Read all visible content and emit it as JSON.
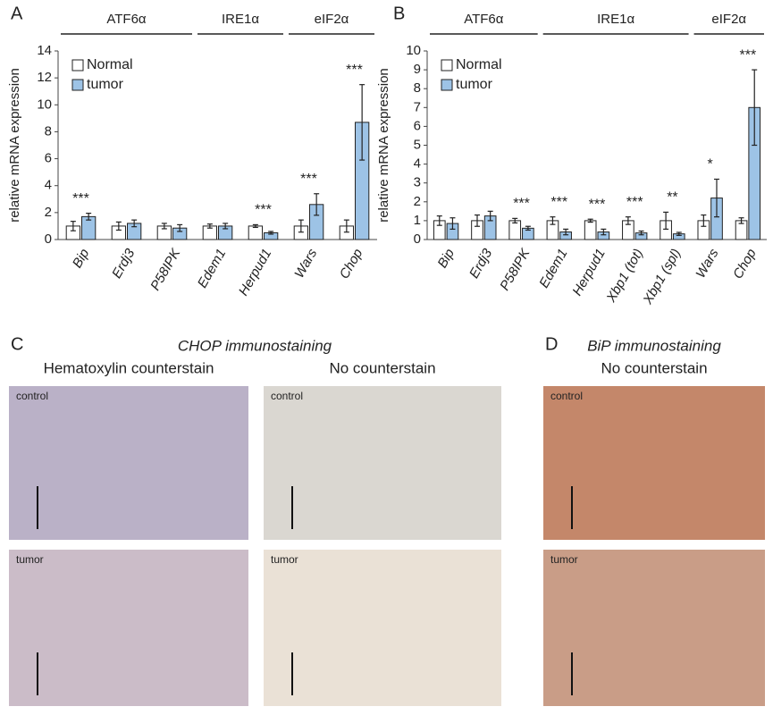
{
  "panel_labels": [
    "A",
    "B",
    "C",
    "D"
  ],
  "chart_data": [
    {
      "type": "bar",
      "y_label": "relative mRNA expression",
      "groups": [
        {
          "label": "ATF6α",
          "categories": [
            "Bip",
            "Erdj3",
            "P58IPK"
          ]
        },
        {
          "label": "IRE1α",
          "categories": [
            "Edem1",
            "Herpud1"
          ]
        },
        {
          "label": "eIF2α",
          "categories": [
            "Wars",
            "Chop"
          ]
        }
      ],
      "series": [
        {
          "name": "Normal",
          "color": "#ffffff",
          "values": [
            1,
            1,
            1,
            1,
            1,
            1,
            1
          ],
          "errors": [
            0.35,
            0.3,
            0.2,
            0.15,
            0.1,
            0.45,
            0.45
          ]
        },
        {
          "name": "tumor",
          "color": "#9dc3e6",
          "values": [
            1.7,
            1.2,
            0.85,
            1.0,
            0.5,
            2.6,
            8.7
          ],
          "errors": [
            0.25,
            0.25,
            0.25,
            0.2,
            0.1,
            0.8,
            2.8
          ]
        }
      ],
      "annotations": [
        "***",
        null,
        null,
        null,
        "***",
        "***",
        "***"
      ],
      "ylim": [
        0,
        14
      ],
      "yticks": [
        0,
        2,
        4,
        6,
        8,
        10,
        12,
        14
      ],
      "legend": "top-left"
    },
    {
      "type": "bar",
      "y_label": "relative mRNA expression",
      "groups": [
        {
          "label": "ATF6α",
          "categories": [
            "Bip",
            "Erdj3",
            "P58IPK"
          ]
        },
        {
          "label": "IRE1α",
          "categories": [
            "Edem1",
            "Herpud1",
            "Xbp1 (tot)",
            "Xbp1 (spl)"
          ]
        },
        {
          "label": "eIF2α",
          "categories": [
            "Wars",
            "Chop"
          ]
        }
      ],
      "series": [
        {
          "name": "Normal",
          "color": "#ffffff",
          "values": [
            1,
            1,
            1,
            1,
            1,
            1,
            1,
            1,
            1
          ],
          "errors": [
            0.25,
            0.3,
            0.12,
            0.2,
            0.08,
            0.2,
            0.45,
            0.3,
            0.15
          ]
        },
        {
          "name": "tumor",
          "color": "#9dc3e6",
          "values": [
            0.85,
            1.25,
            0.6,
            0.4,
            0.4,
            0.35,
            0.3,
            2.2,
            7.0
          ],
          "errors": [
            0.3,
            0.25,
            0.1,
            0.15,
            0.15,
            0.1,
            0.08,
            1.0,
            2.0
          ]
        }
      ],
      "annotations": [
        null,
        null,
        "***",
        "***",
        "***",
        "***",
        "**",
        "*",
        "***"
      ],
      "ylim": [
        0,
        10
      ],
      "yticks": [
        0,
        1,
        2,
        3,
        4,
        5,
        6,
        7,
        8,
        9,
        10
      ],
      "legend": "top-left"
    }
  ],
  "micrographs": [
    {
      "title": "CHOP immunostaining",
      "columns": [
        {
          "subtitle": "Hematoxylin counterstain",
          "images": [
            "control",
            "tumor"
          ]
        },
        {
          "subtitle": "No counterstain",
          "images": [
            "control",
            "tumor"
          ]
        }
      ]
    },
    {
      "title": "BiP immunostaining",
      "columns": [
        {
          "subtitle": "No counterstain",
          "images": [
            "control",
            "tumor"
          ]
        }
      ]
    }
  ]
}
